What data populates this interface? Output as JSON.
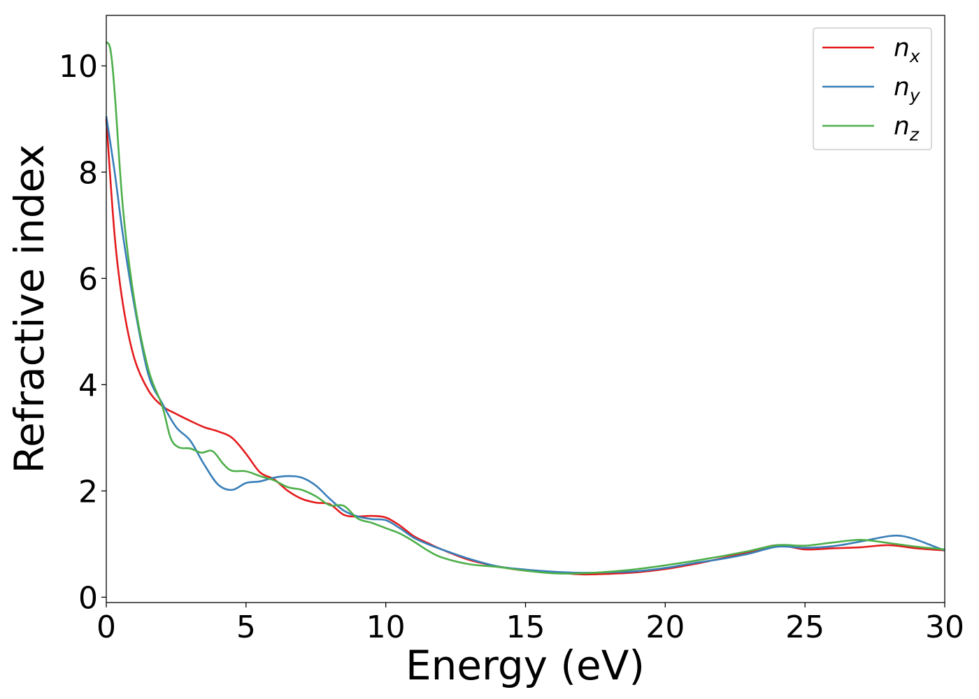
{
  "chart_data": {
    "type": "line",
    "xlabel": "Energy (eV)",
    "ylabel": "Refractive index",
    "xlim": [
      0,
      30
    ],
    "ylim": [
      -0.1,
      10.95
    ],
    "xticks": [
      "0",
      "5",
      "10",
      "15",
      "20",
      "25",
      "30"
    ],
    "yticks": [
      "0",
      "2",
      "4",
      "6",
      "8",
      "10"
    ],
    "grid": false,
    "legend_position": "top-right",
    "series": [
      {
        "name": "n",
        "subscript": "x",
        "color": "#e41a1c",
        "x": [
          0,
          0.3,
          0.6,
          1,
          1.5,
          2,
          2.5,
          3,
          3.5,
          4,
          4.5,
          5,
          5.5,
          6,
          6.5,
          7,
          7.5,
          8,
          8.5,
          9,
          9.5,
          10,
          10.5,
          11,
          11.5,
          12,
          13,
          14,
          15,
          16,
          17,
          18,
          19,
          20,
          21,
          22,
          23,
          24,
          25,
          26,
          27,
          28,
          29,
          30
        ],
        "y": [
          9.0,
          6.8,
          5.5,
          4.5,
          3.9,
          3.6,
          3.45,
          3.32,
          3.2,
          3.12,
          3.0,
          2.7,
          2.35,
          2.22,
          2.0,
          1.85,
          1.78,
          1.75,
          1.55,
          1.52,
          1.53,
          1.5,
          1.35,
          1.15,
          1.02,
          0.9,
          0.7,
          0.58,
          0.5,
          0.47,
          0.43,
          0.44,
          0.47,
          0.53,
          0.62,
          0.73,
          0.85,
          0.98,
          0.9,
          0.92,
          0.94,
          0.98,
          0.92,
          0.88
        ]
      },
      {
        "name": "n",
        "subscript": "y",
        "color": "#377eb8",
        "x": [
          0,
          0.3,
          0.6,
          1,
          1.5,
          2,
          2.5,
          3,
          3.5,
          4,
          4.5,
          5,
          5.5,
          6,
          6.5,
          7,
          7.5,
          8,
          8.5,
          9,
          9.5,
          10,
          10.5,
          11,
          11.5,
          12,
          13,
          14,
          15,
          16,
          17,
          18,
          19,
          20,
          21,
          22,
          23,
          24,
          25,
          26,
          27,
          28,
          28.5,
          29,
          29.5,
          30
        ],
        "y": [
          9.05,
          8.0,
          6.8,
          5.5,
          4.2,
          3.65,
          3.2,
          2.95,
          2.5,
          2.12,
          2.02,
          2.15,
          2.18,
          2.25,
          2.28,
          2.25,
          2.1,
          1.85,
          1.63,
          1.52,
          1.47,
          1.45,
          1.3,
          1.12,
          1.0,
          0.9,
          0.72,
          0.58,
          0.52,
          0.48,
          0.46,
          0.47,
          0.49,
          0.55,
          0.64,
          0.72,
          0.82,
          0.95,
          0.93,
          0.96,
          1.05,
          1.15,
          1.15,
          1.08,
          0.98,
          0.88
        ]
      },
      {
        "name": "n",
        "subscript": "z",
        "color": "#4daf4a",
        "x": [
          0,
          0.15,
          0.3,
          0.6,
          1,
          1.5,
          2,
          2.3,
          2.6,
          3,
          3.4,
          3.8,
          4.2,
          4.5,
          5,
          5.5,
          6,
          6.5,
          7,
          7.5,
          8,
          8.5,
          9,
          9.5,
          10,
          10.5,
          11,
          11.5,
          12,
          13,
          14,
          15,
          16,
          17,
          18,
          19,
          20,
          21,
          22,
          23,
          24,
          25,
          26,
          27,
          28,
          29,
          30
        ],
        "y": [
          10.45,
          10.3,
          9.5,
          7.3,
          5.6,
          4.3,
          3.6,
          3.0,
          2.82,
          2.8,
          2.72,
          2.75,
          2.5,
          2.38,
          2.37,
          2.28,
          2.2,
          2.07,
          2.02,
          1.9,
          1.73,
          1.72,
          1.48,
          1.4,
          1.3,
          1.2,
          1.05,
          0.88,
          0.75,
          0.62,
          0.57,
          0.5,
          0.45,
          0.45,
          0.48,
          0.53,
          0.6,
          0.68,
          0.77,
          0.87,
          0.98,
          0.97,
          1.03,
          1.08,
          1.02,
          0.95,
          0.9
        ]
      }
    ]
  }
}
